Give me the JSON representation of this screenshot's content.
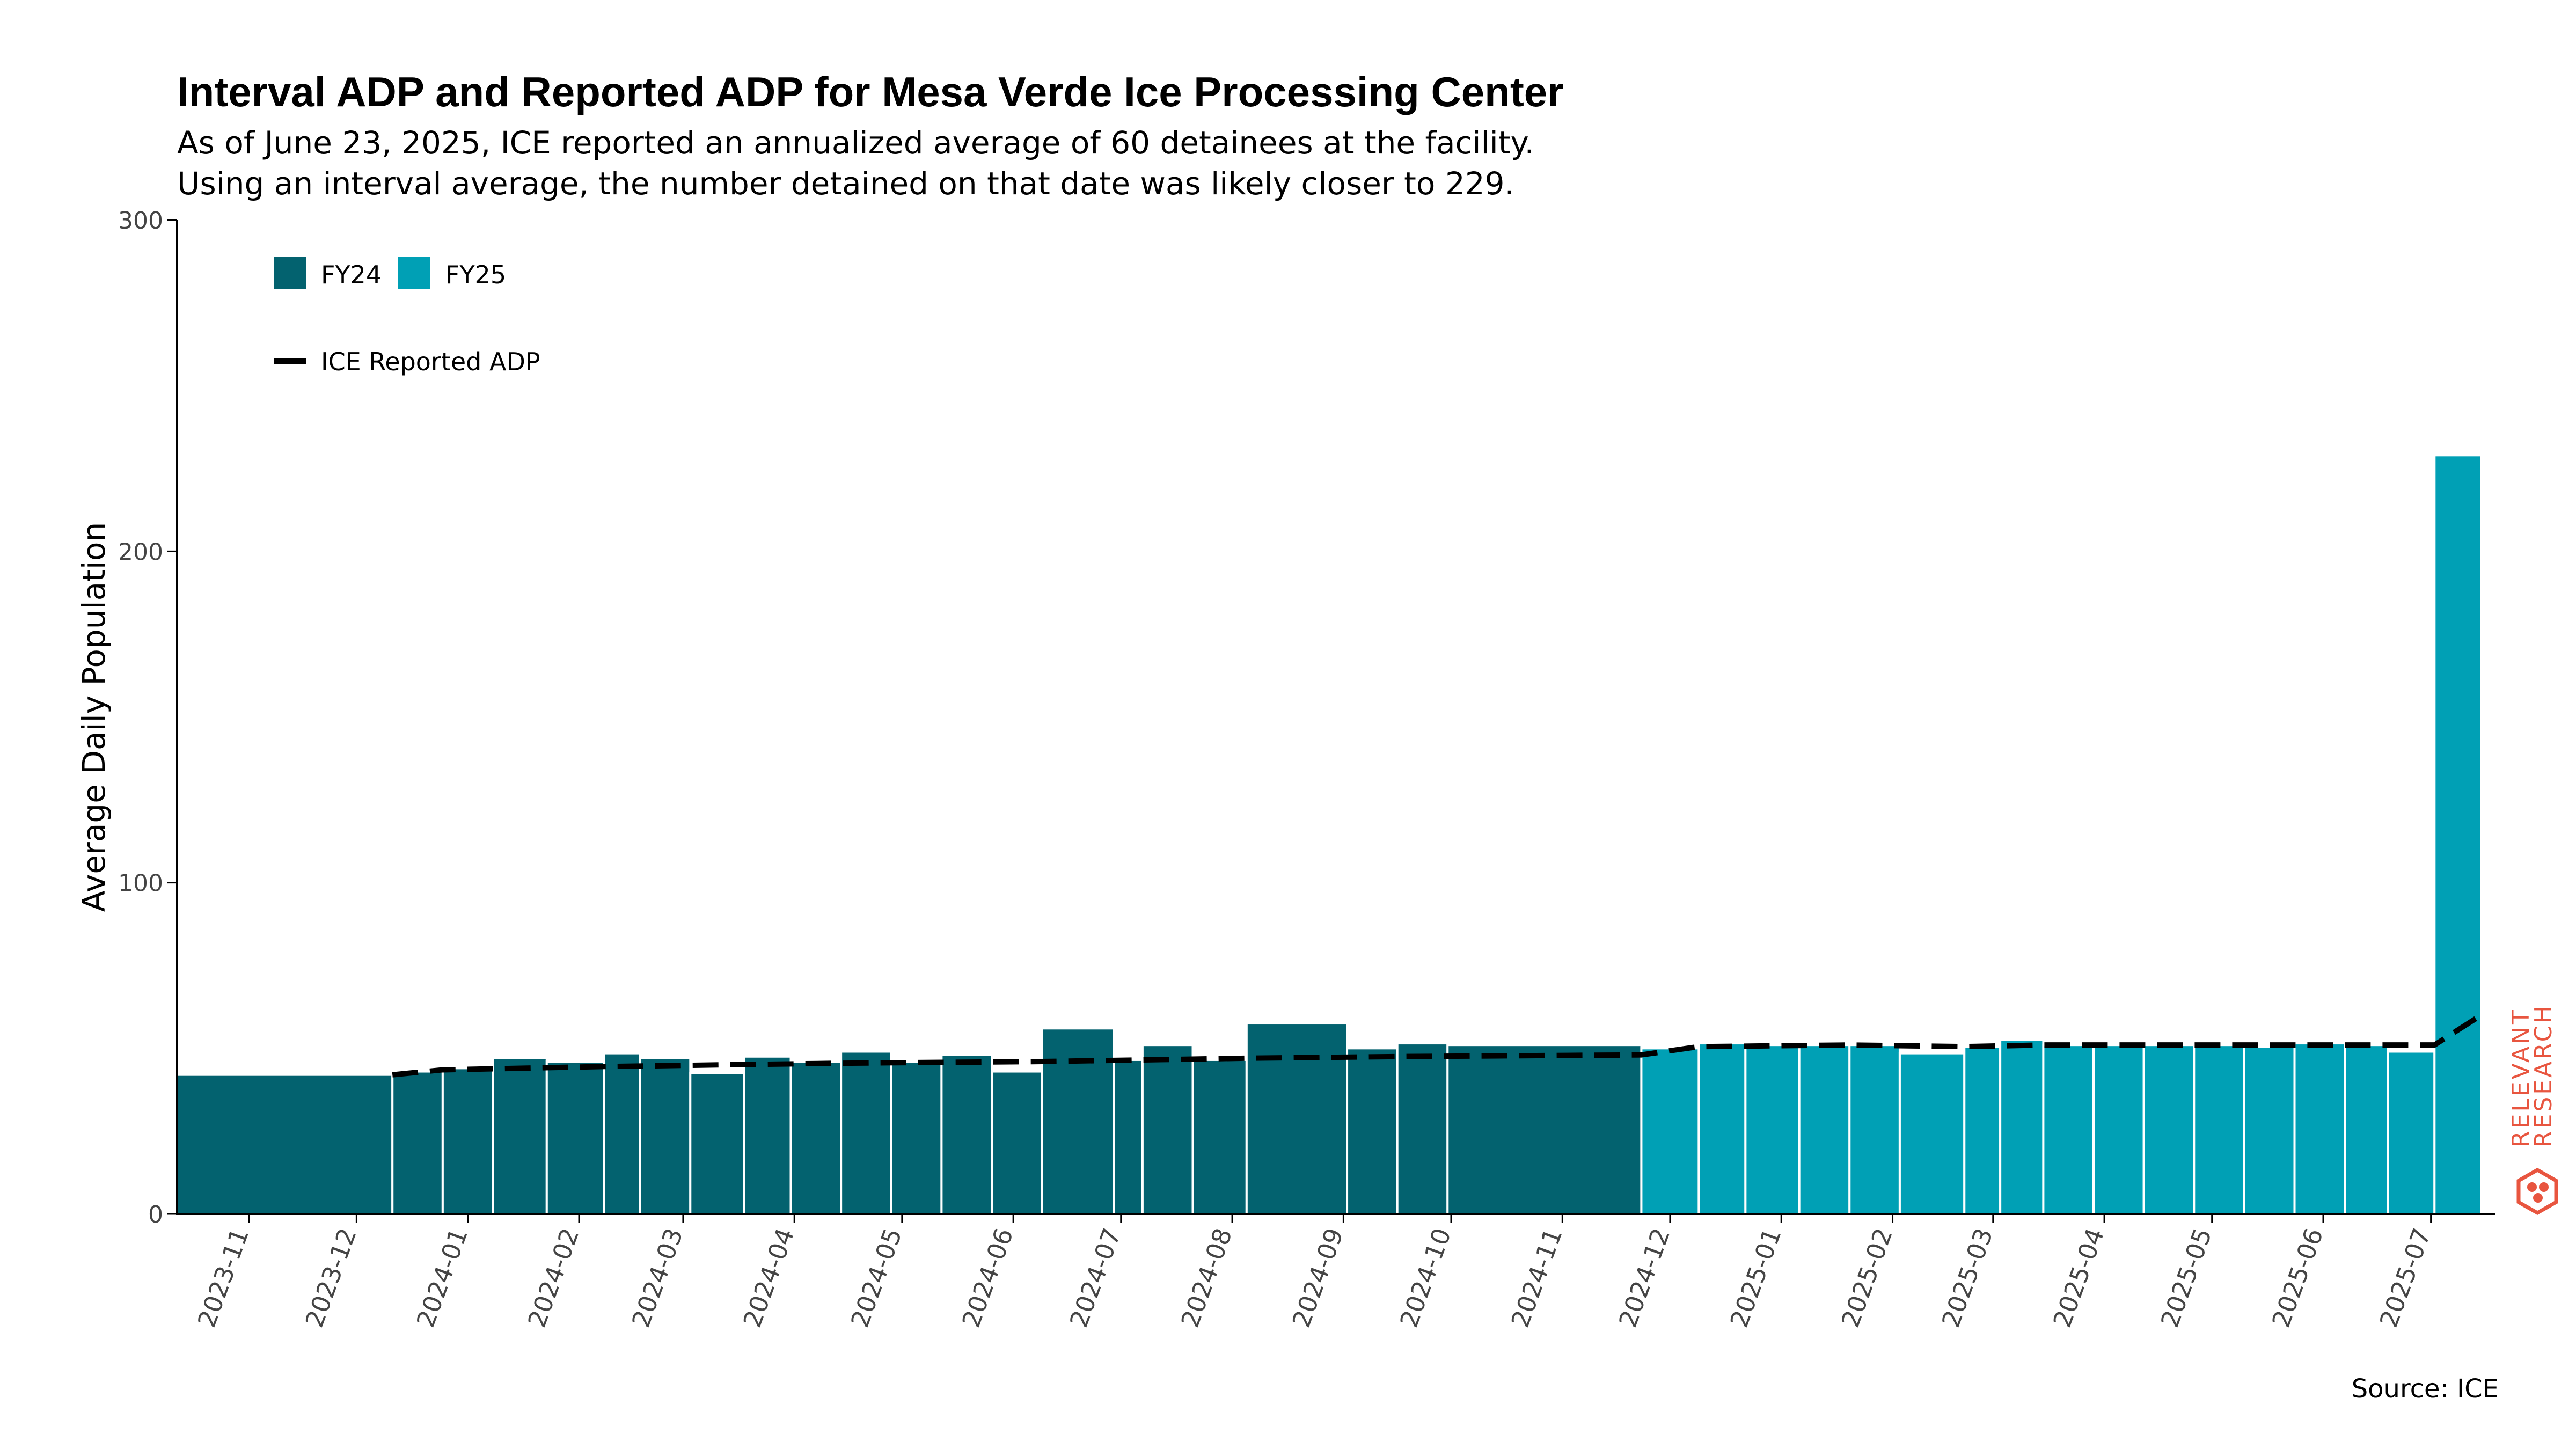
{
  "title": "Interval ADP and Reported ADP for Mesa Verde Ice Processing Center",
  "subtitle_lines": [
    "As of June 23, 2025, ICE reported an annualized average of 60 detainees at the facility.",
    "Using an interval average, the number detained on that date was likely closer to 229."
  ],
  "caption": "Source: ICE",
  "logo": {
    "text_line1": "RELEVANT",
    "text_line2": "RESEARCH",
    "color": "#e8553f"
  },
  "colors": {
    "FY24": "#03626f",
    "FY25": "#00a0b5",
    "reported_line": "#000000"
  },
  "chart_data": {
    "type": "bar",
    "ylabel": "Average Daily Population",
    "xlabel": "",
    "ylim": [
      0,
      300
    ],
    "yticks": [
      0,
      100,
      200,
      300
    ],
    "x_range": [
      "2023-10-12",
      "2025-07-19"
    ],
    "xticks": [
      "2023-11",
      "2023-12",
      "2024-01",
      "2024-02",
      "2024-03",
      "2024-04",
      "2024-05",
      "2024-06",
      "2024-07",
      "2024-08",
      "2024-09",
      "2024-10",
      "2024-11",
      "2024-12",
      "2025-01",
      "2025-02",
      "2025-03",
      "2025-04",
      "2025-05",
      "2025-06",
      "2025-07"
    ],
    "legend": {
      "placement": "top-left",
      "bar_entries": [
        "FY24",
        "FY25"
      ],
      "line_entry": "ICE Reported ADP"
    },
    "interval_adp": [
      {
        "start": "2023-10-12",
        "end": "2023-12-11",
        "value": 42,
        "fy": "FY24"
      },
      {
        "start": "2023-12-11",
        "end": "2023-12-25",
        "value": 43,
        "fy": "FY24"
      },
      {
        "start": "2023-12-25",
        "end": "2024-01-08",
        "value": 44,
        "fy": "FY24"
      },
      {
        "start": "2024-01-08",
        "end": "2024-01-23",
        "value": 47,
        "fy": "FY24"
      },
      {
        "start": "2024-01-23",
        "end": "2024-02-08",
        "value": 46,
        "fy": "FY24"
      },
      {
        "start": "2024-02-08",
        "end": "2024-02-18",
        "value": 48.5,
        "fy": "FY24"
      },
      {
        "start": "2024-02-18",
        "end": "2024-03-03",
        "value": 47,
        "fy": "FY24"
      },
      {
        "start": "2024-03-03",
        "end": "2024-03-18",
        "value": 42.5,
        "fy": "FY24"
      },
      {
        "start": "2024-03-18",
        "end": "2024-03-31",
        "value": 47.5,
        "fy": "FY24"
      },
      {
        "start": "2024-03-31",
        "end": "2024-04-14",
        "value": 46,
        "fy": "FY24"
      },
      {
        "start": "2024-04-14",
        "end": "2024-04-28",
        "value": 49,
        "fy": "FY24"
      },
      {
        "start": "2024-04-28",
        "end": "2024-05-12",
        "value": 46,
        "fy": "FY24"
      },
      {
        "start": "2024-05-12",
        "end": "2024-05-26",
        "value": 48,
        "fy": "FY24"
      },
      {
        "start": "2024-05-26",
        "end": "2024-06-09",
        "value": 43,
        "fy": "FY24"
      },
      {
        "start": "2024-06-09",
        "end": "2024-06-29",
        "value": 56,
        "fy": "FY24"
      },
      {
        "start": "2024-06-29",
        "end": "2024-07-07",
        "value": 46.5,
        "fy": "FY24"
      },
      {
        "start": "2024-07-07",
        "end": "2024-07-21",
        "value": 51,
        "fy": "FY24"
      },
      {
        "start": "2024-07-21",
        "end": "2024-08-05",
        "value": 46.5,
        "fy": "FY24"
      },
      {
        "start": "2024-08-05",
        "end": "2024-09-02",
        "value": 57.5,
        "fy": "FY24"
      },
      {
        "start": "2024-09-02",
        "end": "2024-09-16",
        "value": 50,
        "fy": "FY24"
      },
      {
        "start": "2024-09-16",
        "end": "2024-09-30",
        "value": 51.5,
        "fy": "FY24"
      },
      {
        "start": "2024-09-30",
        "end": "2024-11-23",
        "value": 51,
        "fy": "FY24"
      },
      {
        "start": "2024-11-23",
        "end": "2024-12-09",
        "value": 50,
        "fy": "FY25"
      },
      {
        "start": "2024-12-09",
        "end": "2024-12-22",
        "value": 51.5,
        "fy": "FY25"
      },
      {
        "start": "2024-12-22",
        "end": "2025-01-06",
        "value": 51,
        "fy": "FY25"
      },
      {
        "start": "2025-01-06",
        "end": "2025-01-20",
        "value": 51,
        "fy": "FY25"
      },
      {
        "start": "2025-01-20",
        "end": "2025-02-03",
        "value": 51,
        "fy": "FY25"
      },
      {
        "start": "2025-02-03",
        "end": "2025-02-21",
        "value": 48.5,
        "fy": "FY25"
      },
      {
        "start": "2025-02-21",
        "end": "2025-03-03",
        "value": 50.5,
        "fy": "FY25"
      },
      {
        "start": "2025-03-03",
        "end": "2025-03-15",
        "value": 52.5,
        "fy": "FY25"
      },
      {
        "start": "2025-03-15",
        "end": "2025-03-29",
        "value": 51,
        "fy": "FY25"
      },
      {
        "start": "2025-03-29",
        "end": "2025-04-12",
        "value": 51,
        "fy": "FY25"
      },
      {
        "start": "2025-04-12",
        "end": "2025-04-26",
        "value": 51,
        "fy": "FY25"
      },
      {
        "start": "2025-04-26",
        "end": "2025-05-10",
        "value": 51,
        "fy": "FY25"
      },
      {
        "start": "2025-05-10",
        "end": "2025-05-24",
        "value": 50.5,
        "fy": "FY25"
      },
      {
        "start": "2025-05-24",
        "end": "2025-06-07",
        "value": 51.5,
        "fy": "FY25"
      },
      {
        "start": "2025-06-07",
        "end": "2025-06-19",
        "value": 51,
        "fy": "FY25"
      },
      {
        "start": "2025-06-19",
        "end": "2025-07-02",
        "value": 49,
        "fy": "FY25"
      },
      {
        "start": "2025-07-02",
        "end": "2025-07-15",
        "value": 229,
        "fy": "FY25"
      }
    ],
    "reported_adp": [
      {
        "x": "2023-12-11",
        "y": 42
      },
      {
        "x": "2023-12-25",
        "y": 43.5
      },
      {
        "x": "2024-02-08",
        "y": 44.5
      },
      {
        "x": "2024-04-14",
        "y": 45.5
      },
      {
        "x": "2024-06-09",
        "y": 46
      },
      {
        "x": "2024-08-05",
        "y": 47
      },
      {
        "x": "2024-09-16",
        "y": 47.5
      },
      {
        "x": "2024-11-23",
        "y": 48
      },
      {
        "x": "2024-12-09",
        "y": 50.5
      },
      {
        "x": "2025-01-20",
        "y": 51
      },
      {
        "x": "2025-02-21",
        "y": 50.5
      },
      {
        "x": "2025-03-15",
        "y": 51
      },
      {
        "x": "2025-04-26",
        "y": 51
      },
      {
        "x": "2025-06-19",
        "y": 51
      },
      {
        "x": "2025-07-02",
        "y": 51
      },
      {
        "x": "2025-07-15",
        "y": 60
      }
    ]
  }
}
